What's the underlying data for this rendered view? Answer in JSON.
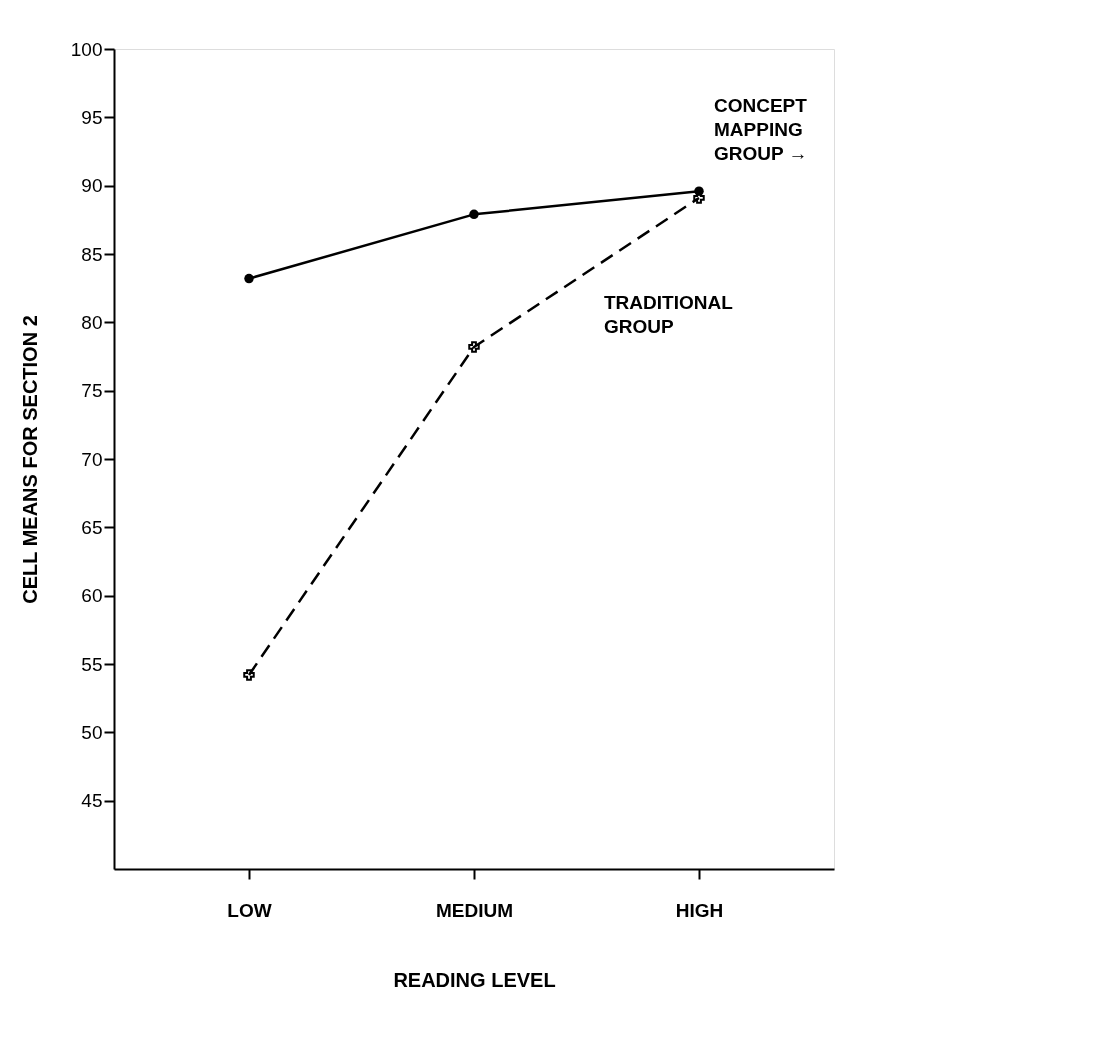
{
  "chart_data": {
    "type": "line",
    "xlabel": "READING LEVEL",
    "ylabel": "CELL MEANS FOR SECTION 2",
    "categories": [
      "LOW",
      "MEDIUM",
      "HIGH"
    ],
    "series": [
      {
        "name": "CONCEPT MAPPING GROUP →",
        "color": "#000000",
        "values": [
          83.2,
          87.9,
          89.6
        ],
        "marker": "circle",
        "line_style": "solid"
      },
      {
        "name": "TRADITIONAL GROUP",
        "color": "#000000",
        "values": [
          54.2,
          78.2,
          89.1
        ],
        "marker": "cross",
        "line_style": "dashed"
      }
    ],
    "ylim": [
      40,
      100
    ],
    "yticks": [
      45,
      50,
      55,
      60,
      65,
      70,
      75,
      80,
      85,
      90,
      95,
      100
    ],
    "grid": false
  }
}
